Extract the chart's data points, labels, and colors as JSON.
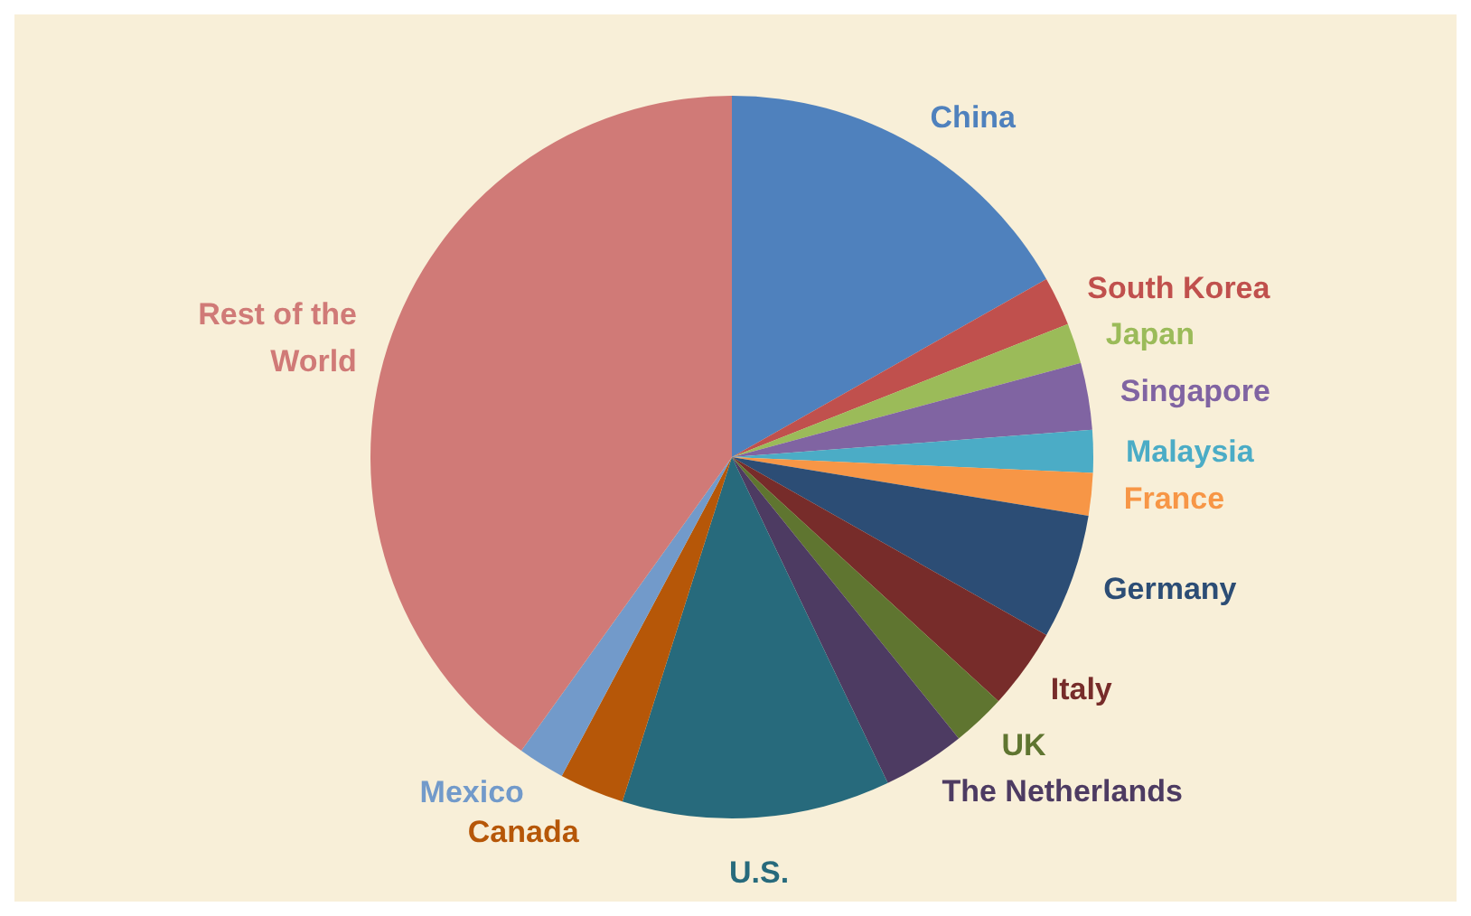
{
  "chart_data": {
    "type": "pie",
    "categories": [
      "China",
      "South Korea",
      "Japan",
      "Singapore",
      "Malaysia",
      "France",
      "Germany",
      "Italy",
      "UK",
      "The Netherlands",
      "U.S.",
      "Canada",
      "Mexico",
      "Rest of the World"
    ],
    "values": [
      16.8,
      2.2,
      1.8,
      3.0,
      1.9,
      1.9,
      5.6,
      3.6,
      2.4,
      3.7,
      12.0,
      2.9,
      2.1,
      40.1
    ],
    "colors": [
      "#4f81bd",
      "#c0504d",
      "#9bbb59",
      "#8064a2",
      "#4bacc6",
      "#f79646",
      "#2c4d75",
      "#772c2a",
      "#5f7530",
      "#4d3b62",
      "#276a7c",
      "#b65708",
      "#729aca",
      "#d07a77"
    ]
  }
}
